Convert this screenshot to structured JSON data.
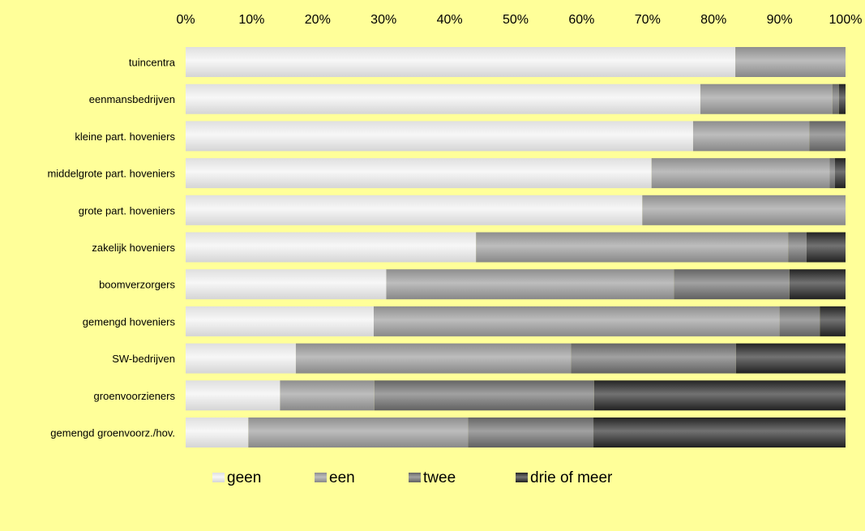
{
  "chart_data": {
    "type": "bar",
    "orientation": "horizontal",
    "stacked": "percent",
    "categories": [
      "tuincentra",
      "eenmansbedrijven",
      "kleine part. hoveniers",
      "middelgrote part. hoveniers",
      "grote part. hoveniers",
      "zakelijk hoveniers",
      "boomverzorgers",
      "gemengd hoveniers",
      "SW-bedrijven",
      "groenvoorzieners",
      "gemengd groenvoorz./hov."
    ],
    "series": [
      {
        "name": "geen",
        "color": "#f2f2f2",
        "values": [
          83.3,
          78.0,
          76.9,
          70.6,
          69.2,
          44.0,
          30.4,
          28.5,
          16.7,
          14.3,
          9.5
        ]
      },
      {
        "name": "een",
        "color": "#9a9a9a",
        "values": [
          16.7,
          20.0,
          17.6,
          27.0,
          30.8,
          47.3,
          43.6,
          61.5,
          41.7,
          14.3,
          33.3
        ]
      },
      {
        "name": "twee",
        "color": "#6e6e6e",
        "values": [
          0,
          1.0,
          5.5,
          0.8,
          0,
          2.8,
          17.5,
          6.1,
          25.0,
          33.3,
          19.0
        ]
      },
      {
        "name": "drie of meer",
        "color": "#262626",
        "values": [
          0,
          1.0,
          0,
          1.6,
          0,
          5.9,
          8.5,
          3.9,
          16.6,
          38.1,
          38.2
        ]
      }
    ],
    "x_ticks": [
      "0%",
      "10%",
      "20%",
      "30%",
      "40%",
      "50%",
      "60%",
      "70%",
      "80%",
      "90%",
      "100%"
    ],
    "xlim": [
      0,
      100
    ],
    "grid": false,
    "legend_position": "bottom"
  }
}
